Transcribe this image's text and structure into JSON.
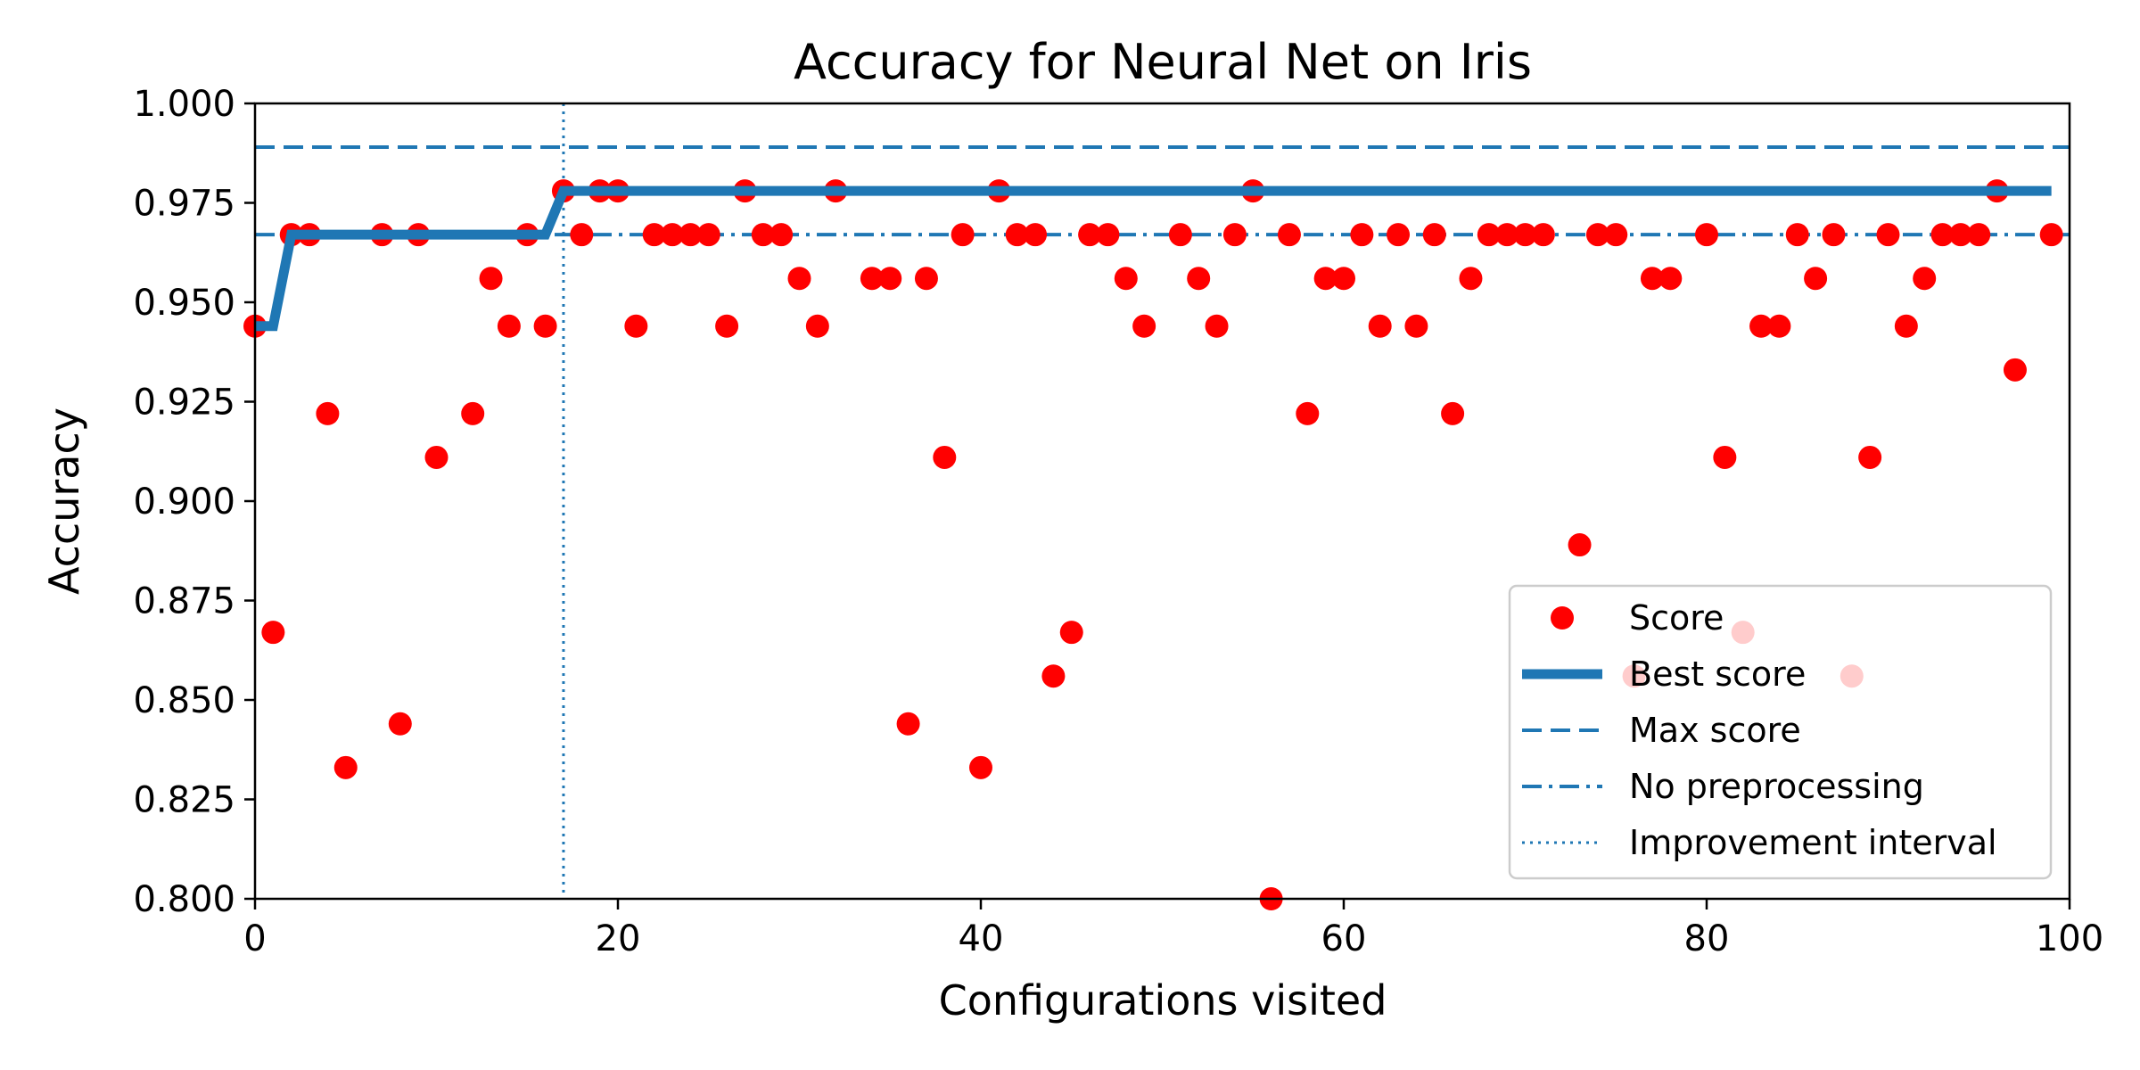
{
  "chart_data": {
    "type": "scatter",
    "title": "Accuracy for Neural Net on Iris",
    "xlabel": "Configurations visited",
    "ylabel": "Accuracy",
    "xlim": [
      0,
      100
    ],
    "ylim": [
      0.8,
      1.0
    ],
    "xticks": [
      0,
      20,
      40,
      60,
      80,
      100
    ],
    "xtick_labels": [
      "0",
      "20",
      "40",
      "60",
      "80",
      "100"
    ],
    "yticks": [
      0.8,
      0.825,
      0.85,
      0.875,
      0.9,
      0.925,
      0.95,
      0.975,
      1.0
    ],
    "ytick_labels": [
      "0.800",
      "0.825",
      "0.850",
      "0.875",
      "0.900",
      "0.925",
      "0.950",
      "0.975",
      "1.000"
    ],
    "grid": false,
    "legend_position": "lower right",
    "colors": {
      "score": "#ff0000",
      "lines": "#1f77b4"
    },
    "series": [
      {
        "name": "Score",
        "kind": "points",
        "x": [
          0,
          1,
          2,
          3,
          4,
          5,
          7,
          8,
          9,
          10,
          12,
          13,
          14,
          15,
          16,
          17,
          18,
          19,
          20,
          21,
          22,
          23,
          24,
          25,
          26,
          27,
          28,
          29,
          30,
          31,
          32,
          34,
          35,
          36,
          37,
          38,
          39,
          40,
          41,
          42,
          43,
          44,
          45,
          46,
          47,
          48,
          49,
          51,
          52,
          53,
          54,
          55,
          56,
          57,
          58,
          59,
          60,
          61,
          62,
          63,
          64,
          65,
          66,
          67,
          68,
          69,
          70,
          71,
          73,
          74,
          75,
          76,
          77,
          78,
          80,
          81,
          82,
          83,
          84,
          85,
          86,
          87,
          88,
          89,
          90,
          91,
          92,
          93,
          94,
          95,
          96,
          97,
          99
        ],
        "y": [
          0.944,
          0.867,
          0.967,
          0.967,
          0.922,
          0.833,
          0.967,
          0.844,
          0.967,
          0.911,
          0.922,
          0.956,
          0.944,
          0.967,
          0.944,
          0.978,
          0.967,
          0.978,
          0.978,
          0.944,
          0.967,
          0.967,
          0.967,
          0.967,
          0.944,
          0.978,
          0.967,
          0.967,
          0.956,
          0.944,
          0.978,
          0.956,
          0.956,
          0.844,
          0.956,
          0.911,
          0.967,
          0.833,
          0.978,
          0.967,
          0.967,
          0.856,
          0.867,
          0.967,
          0.967,
          0.956,
          0.944,
          0.967,
          0.956,
          0.944,
          0.967,
          0.978,
          0.8,
          0.967,
          0.922,
          0.956,
          0.956,
          0.967,
          0.944,
          0.967,
          0.944,
          0.967,
          0.922,
          0.956,
          0.967,
          0.967,
          0.967,
          0.967,
          0.889,
          0.967,
          0.967,
          0.856,
          0.956,
          0.956,
          0.967,
          0.911,
          0.867,
          0.944,
          0.944,
          0.967,
          0.956,
          0.967,
          0.856,
          0.911,
          0.967,
          0.944,
          0.956,
          0.967,
          0.967,
          0.967,
          0.978,
          0.933,
          0.967
        ]
      },
      {
        "name": "Best score",
        "kind": "step-line",
        "x": [
          0,
          1,
          2,
          16,
          17,
          99
        ],
        "y": [
          0.944,
          0.944,
          0.967,
          0.967,
          0.978,
          0.978
        ]
      },
      {
        "name": "Max score",
        "kind": "hline-dashed",
        "y": 0.989
      },
      {
        "name": "No preprocessing",
        "kind": "hline-dashdot",
        "y": 0.967
      },
      {
        "name": "Improvement interval",
        "kind": "vline-dotted",
        "x": 17
      }
    ]
  }
}
